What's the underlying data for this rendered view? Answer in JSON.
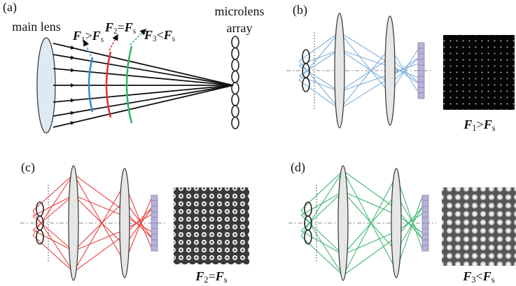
{
  "panel_a": {
    "tag": "(a)",
    "main_lens": "main lens",
    "microlens_array": [
      "microlens",
      "array"
    ],
    "conditions": [
      [
        {
          "text": "F",
          "kind": "var"
        },
        {
          "text": "1",
          "kind": "sub"
        },
        {
          "text": ">",
          "kind": "op"
        },
        {
          "text": "F",
          "kind": "var"
        },
        {
          "text": "s",
          "kind": "sub"
        }
      ],
      [
        {
          "text": "F",
          "kind": "var"
        },
        {
          "text": "2",
          "kind": "sub"
        },
        {
          "text": "=",
          "kind": "op"
        },
        {
          "text": "F",
          "kind": "var"
        },
        {
          "text": "s",
          "kind": "sub"
        }
      ],
      [
        {
          "text": "F",
          "kind": "var"
        },
        {
          "text": "3",
          "kind": "sub"
        },
        {
          "text": "<",
          "kind": "op"
        },
        {
          "text": "F",
          "kind": "var"
        },
        {
          "text": "s",
          "kind": "sub"
        }
      ]
    ]
  },
  "panel_b": {
    "tag": "(b)",
    "condition": [
      {
        "text": "F",
        "kind": "var"
      },
      {
        "text": "1",
        "kind": "sub"
      },
      {
        "text": ">",
        "kind": "op"
      },
      {
        "text": "F",
        "kind": "var"
      },
      {
        "text": "s",
        "kind": "sub"
      }
    ]
  },
  "panel_c": {
    "tag": "(c)",
    "condition": [
      {
        "text": "F",
        "kind": "var"
      },
      {
        "text": "2",
        "kind": "sub"
      },
      {
        "text": "=",
        "kind": "op"
      },
      {
        "text": "F",
        "kind": "var"
      },
      {
        "text": "s",
        "kind": "sub"
      }
    ]
  },
  "panel_d": {
    "tag": "(d)",
    "condition": [
      {
        "text": "F",
        "kind": "var"
      },
      {
        "text": "3",
        "kind": "sub"
      },
      {
        "text": "<",
        "kind": "op"
      },
      {
        "text": "F",
        "kind": "var"
      },
      {
        "text": "s",
        "kind": "sub"
      }
    ]
  }
}
